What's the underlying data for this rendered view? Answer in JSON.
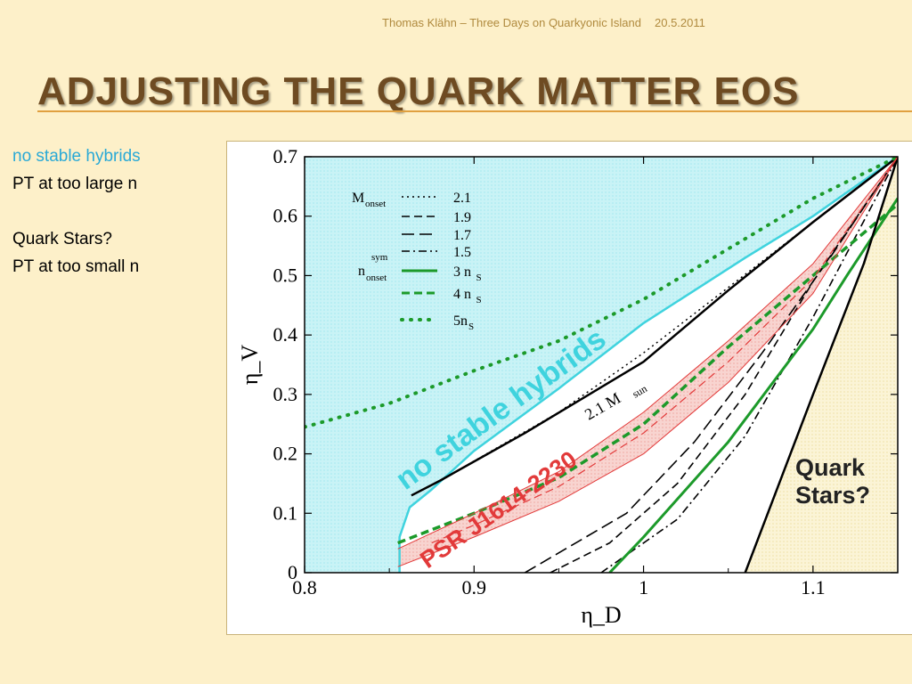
{
  "header": {
    "author_line": "Thomas Klähn – Three Days on Quarkyonic Island",
    "date": "20.5.2011"
  },
  "title": "ADJUSTING THE QUARK MATTER EOS",
  "bullets": {
    "line1": "no stable hybrids",
    "line2": "PT at too large n",
    "line3": "Quark Stars?",
    "line4": "PT at too small n"
  },
  "colors": {
    "accent_text": "#2aa9d6",
    "cyan_region": "#3fd3de",
    "psr_band": "#e23a3a",
    "green_curves": "#1c9a2a",
    "title": "#6e4b22"
  },
  "chart_data": {
    "type": "line",
    "xlabel": "η_D",
    "ylabel": "η_V",
    "xlim": [
      0.8,
      1.15
    ],
    "ylim": [
      0,
      0.7
    ],
    "x_ticks": [
      "0.8",
      "0.9",
      "1",
      "1.1"
    ],
    "y_ticks": [
      "0",
      "0.1",
      "0.2",
      "0.3",
      "0.4",
      "0.5",
      "0.6",
      "0.7"
    ],
    "legend": {
      "group1_label": "M",
      "group1_sub": "onset",
      "group2_label": "n",
      "group2_sup": "sym",
      "group2_sub": "onset",
      "entries": [
        {
          "label": "2.1",
          "style": "dotted",
          "color": "#000000"
        },
        {
          "label": "1.9",
          "style": "dashed",
          "color": "#000000"
        },
        {
          "label": "1.7",
          "style": "long-dashed",
          "color": "#000000"
        },
        {
          "label": "1.5",
          "style": "dash-dot",
          "color": "#000000"
        },
        {
          "label": "3 n",
          "sub": "S",
          "style": "solid",
          "color": "#1c9a2a"
        },
        {
          "label": "4 n",
          "sub": "S",
          "style": "dashed",
          "color": "#1c9a2a"
        },
        {
          "label": "5n",
          "sub": "S",
          "style": "dotted",
          "color": "#1c9a2a"
        }
      ]
    },
    "annotations": {
      "no_stable_hybrids": "no stable hybrids",
      "psr": "PSR J1614-2230",
      "mass_label": "2.1 M",
      "mass_sub": "sun",
      "quark_stars_1": "Quark",
      "quark_stars_2": "Stars?"
    },
    "series": [
      {
        "id": "cyan-boundary",
        "color": "#3fd3de",
        "style": "solid",
        "points": [
          [
            0.856,
            0
          ],
          [
            0.856,
            0.06
          ],
          [
            0.862,
            0.11
          ],
          [
            0.875,
            0.14
          ],
          [
            0.9,
            0.205
          ],
          [
            0.95,
            0.31
          ],
          [
            1.0,
            0.42
          ],
          [
            1.06,
            0.53
          ],
          [
            1.1,
            0.6
          ],
          [
            1.15,
            0.7
          ]
        ]
      },
      {
        "id": "mass-2.1-solid",
        "color": "#000000",
        "style": "solid",
        "points": [
          [
            0.863,
            0.13
          ],
          [
            0.88,
            0.155
          ],
          [
            0.93,
            0.235
          ],
          [
            1.0,
            0.355
          ],
          [
            1.05,
            0.475
          ],
          [
            1.1,
            0.59
          ],
          [
            1.15,
            0.7
          ]
        ]
      },
      {
        "id": "mass-2.1-dotted",
        "color": "#000000",
        "style": "dotted",
        "points": [
          [
            0.88,
            0.155
          ],
          [
            0.95,
            0.27
          ],
          [
            1.0,
            0.37
          ],
          [
            1.05,
            0.48
          ],
          [
            1.1,
            0.59
          ],
          [
            1.15,
            0.7
          ]
        ]
      },
      {
        "id": "mass-1.9",
        "color": "#000000",
        "style": "dashed",
        "points": [
          [
            0.945,
            0
          ],
          [
            0.98,
            0.05
          ],
          [
            1.02,
            0.15
          ],
          [
            1.06,
            0.3
          ],
          [
            1.1,
            0.49
          ],
          [
            1.15,
            0.7
          ]
        ]
      },
      {
        "id": "mass-1.7",
        "color": "#000000",
        "style": "long-dashed",
        "points": [
          [
            0.93,
            0
          ],
          [
            0.99,
            0.1
          ],
          [
            1.03,
            0.22
          ],
          [
            1.07,
            0.37
          ],
          [
            1.11,
            0.53
          ],
          [
            1.15,
            0.7
          ]
        ]
      },
      {
        "id": "mass-1.5",
        "color": "#000000",
        "style": "dash-dot",
        "points": [
          [
            0.975,
            0
          ],
          [
            1.02,
            0.09
          ],
          [
            1.06,
            0.23
          ],
          [
            1.1,
            0.43
          ],
          [
            1.15,
            0.7
          ]
        ]
      },
      {
        "id": "nsym-3ns",
        "color": "#1c9a2a",
        "style": "solid",
        "points": [
          [
            0.98,
            0
          ],
          [
            1.0,
            0.06
          ],
          [
            1.05,
            0.22
          ],
          [
            1.1,
            0.41
          ],
          [
            1.12,
            0.5
          ],
          [
            1.15,
            0.63
          ]
        ]
      },
      {
        "id": "nsym-4ns",
        "color": "#1c9a2a",
        "style": "dashed",
        "points": [
          [
            0.855,
            0.05
          ],
          [
            0.9,
            0.1
          ],
          [
            0.95,
            0.16
          ],
          [
            1.0,
            0.25
          ],
          [
            1.05,
            0.38
          ],
          [
            1.1,
            0.5
          ],
          [
            1.15,
            0.62
          ]
        ]
      },
      {
        "id": "nsym-5ns",
        "color": "#1c9a2a",
        "style": "dotted",
        "points": [
          [
            0.8,
            0.245
          ],
          [
            0.85,
            0.285
          ],
          [
            0.9,
            0.34
          ],
          [
            0.95,
            0.39
          ],
          [
            1.0,
            0.46
          ],
          [
            1.05,
            0.545
          ],
          [
            1.1,
            0.63
          ],
          [
            1.15,
            0.7
          ]
        ]
      },
      {
        "id": "quark-stars-boundary",
        "color": "#000000",
        "style": "solid",
        "points": [
          [
            1.06,
            0
          ],
          [
            1.1,
            0.3
          ],
          [
            1.13,
            0.52
          ],
          [
            1.15,
            0.7
          ]
        ]
      },
      {
        "id": "psr-band-upper",
        "color": "#e23a3a",
        "style": "solid",
        "points": [
          [
            0.855,
            0.04
          ],
          [
            0.9,
            0.1
          ],
          [
            0.95,
            0.17
          ],
          [
            1.0,
            0.27
          ],
          [
            1.05,
            0.39
          ],
          [
            1.1,
            0.52
          ],
          [
            1.15,
            0.7
          ]
        ]
      },
      {
        "id": "psr-band-lower",
        "color": "#e23a3a",
        "style": "solid",
        "points": [
          [
            0.855,
            0.01
          ],
          [
            0.9,
            0.06
          ],
          [
            0.95,
            0.12
          ],
          [
            1.0,
            0.2
          ],
          [
            1.05,
            0.32
          ],
          [
            1.1,
            0.47
          ],
          [
            1.15,
            0.7
          ]
        ]
      },
      {
        "id": "psr-band-mid",
        "color": "#e23a3a",
        "style": "dashed",
        "points": [
          [
            0.875,
            0.05
          ],
          [
            0.9,
            0.08
          ],
          [
            0.95,
            0.145
          ],
          [
            1.0,
            0.235
          ],
          [
            1.05,
            0.355
          ],
          [
            1.1,
            0.495
          ],
          [
            1.15,
            0.7
          ]
        ]
      }
    ]
  }
}
